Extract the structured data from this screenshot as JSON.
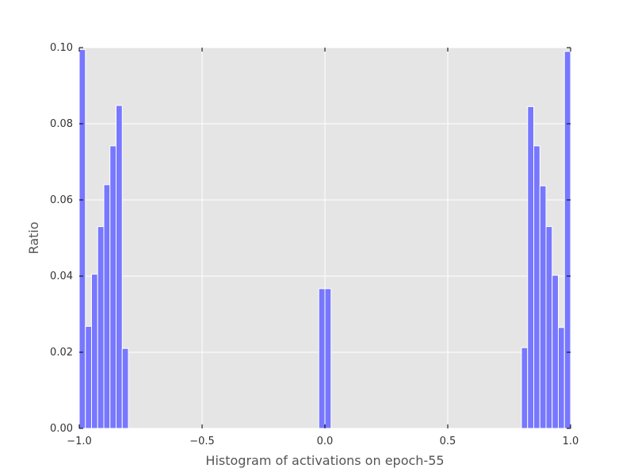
{
  "chart_data": {
    "type": "bar",
    "title": "",
    "xlabel": "Histogram of activations on epoch-55",
    "ylabel": "Ratio",
    "xlim": [
      -1.0,
      1.0
    ],
    "ylim": [
      0.0,
      0.1
    ],
    "grid": true,
    "xticks": [
      -1.0,
      -0.5,
      0.0,
      0.5,
      1.0
    ],
    "xtick_labels": [
      "−1.0",
      "−0.5",
      "0.0",
      "0.5",
      "1.0"
    ],
    "yticks": [
      0.0,
      0.02,
      0.04,
      0.06,
      0.08,
      0.1
    ],
    "ytick_labels": [
      "0.00",
      "0.02",
      "0.04",
      "0.06",
      "0.08",
      "0.10"
    ],
    "bin_width": 0.025,
    "bar_color": "#7777ff",
    "background_color": "#e5e5e5",
    "bins": [
      {
        "x": -1.0,
        "value": 0.0995
      },
      {
        "x": -0.975,
        "value": 0.0268
      },
      {
        "x": -0.95,
        "value": 0.0405
      },
      {
        "x": -0.925,
        "value": 0.053
      },
      {
        "x": -0.9,
        "value": 0.064
      },
      {
        "x": -0.875,
        "value": 0.0742
      },
      {
        "x": -0.85,
        "value": 0.0848
      },
      {
        "x": -0.825,
        "value": 0.021
      },
      {
        "x": -0.025,
        "value": 0.0367
      },
      {
        "x": 0.0,
        "value": 0.0367
      },
      {
        "x": 0.8,
        "value": 0.0212
      },
      {
        "x": 0.825,
        "value": 0.0845
      },
      {
        "x": 0.85,
        "value": 0.0742
      },
      {
        "x": 0.875,
        "value": 0.0637
      },
      {
        "x": 0.9,
        "value": 0.053
      },
      {
        "x": 0.925,
        "value": 0.0402
      },
      {
        "x": 0.95,
        "value": 0.0265
      },
      {
        "x": 0.975,
        "value": 0.099
      }
    ]
  }
}
